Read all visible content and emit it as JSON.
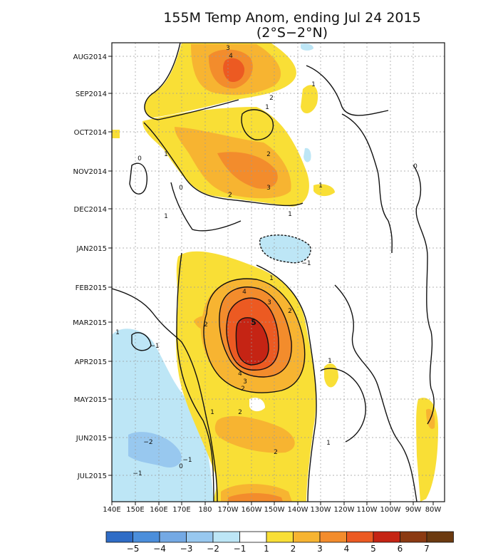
{
  "chart_data": {
    "type": "heatmap",
    "title": "155M Temp Anom, ending Jul 24 2015",
    "subtitle": "(2°S−2°N)",
    "x_ticks": [
      "140E",
      "150E",
      "160E",
      "170E",
      "180",
      "170W",
      "160W",
      "150W",
      "140W",
      "130W",
      "120W",
      "110W",
      "100W",
      "90W",
      "80W"
    ],
    "y_ticks": [
      "AUG2014",
      "SEP2014",
      "OCT2014",
      "NOV2014",
      "DEC2014",
      "JAN2015",
      "FEB2015",
      "MAR2015",
      "APR2015",
      "MAY2015",
      "JUN2015",
      "JUL2015"
    ],
    "grid": true,
    "colorbar": {
      "tick_labels": [
        "−5",
        "−4",
        "−3",
        "−2",
        "−1",
        "1",
        "2",
        "3",
        "4",
        "5",
        "6",
        "7"
      ],
      "colors": [
        "#2f6cc6",
        "#4b8edb",
        "#74a9e4",
        "#98c8ef",
        "#bde6f6",
        "#ffffff",
        "#f9df36",
        "#f7b431",
        "#f38c2c",
        "#ec5a22",
        "#c52414",
        "#8b3a12",
        "#6b3a10"
      ]
    },
    "anomaly_features": [
      {
        "lon": "165W",
        "date": "AUG2014",
        "peak": 5
      },
      {
        "lon": "160W",
        "date": "NOV2014",
        "peak": 3
      },
      {
        "lon": "157W",
        "date": "MAR2015",
        "peak": 6
      },
      {
        "lon": "155W",
        "date": "JUN2015",
        "peak": 2
      },
      {
        "lon": "155W",
        "date": "JUL2015",
        "peak": 3
      },
      {
        "lon": "150E",
        "date": "JUN2015",
        "peak": -2
      },
      {
        "lon": "152W",
        "date": "JAN2015",
        "peak": -1
      }
    ],
    "contour_labels": [
      "3",
      "4",
      "1",
      "2",
      "1",
      "1",
      "2",
      "3",
      "2",
      "1",
      "0",
      "0",
      "0",
      "1",
      "1",
      "−1",
      "1",
      "4",
      "3",
      "2",
      "2",
      "5",
      "1",
      "−1",
      "1",
      "3",
      "4",
      "2",
      "1",
      "2",
      "−2",
      "1",
      "2",
      "−1",
      "−1",
      "0"
    ]
  }
}
